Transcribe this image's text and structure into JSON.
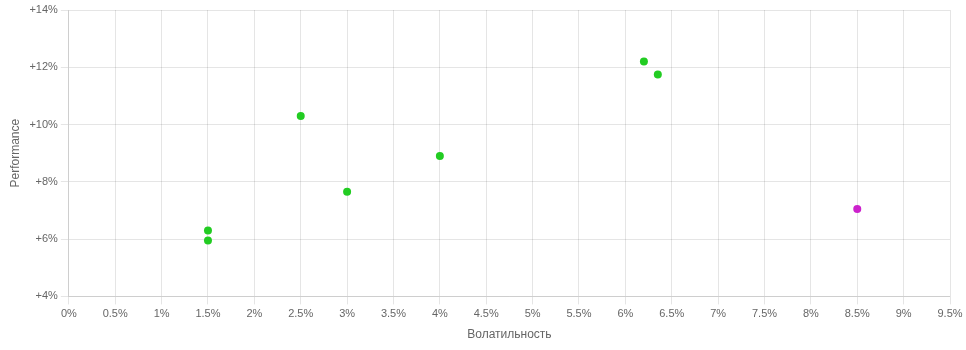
{
  "chart_data": {
    "type": "scatter",
    "xlabel": "Волатильность",
    "ylabel": "Performance",
    "series": [
      {
        "color": "#22cc22",
        "x": [
          1.5,
          1.5,
          2.5,
          3.0,
          4.0,
          6.2,
          6.35
        ],
        "values": [
          6.3,
          5.95,
          10.3,
          7.65,
          8.9,
          12.2,
          11.75
        ]
      },
      {
        "color": "#cc22cc",
        "x": [
          8.5
        ],
        "values": [
          7.05
        ]
      }
    ],
    "xlim": [
      0,
      9.5
    ],
    "ylim": [
      4,
      14
    ],
    "xticks": [
      {
        "value": 0,
        "label": "0%"
      },
      {
        "value": 0.5,
        "label": "0.5%"
      },
      {
        "value": 1.0,
        "label": "1%"
      },
      {
        "value": 1.5,
        "label": "1.5%"
      },
      {
        "value": 2.0,
        "label": "2%"
      },
      {
        "value": 2.5,
        "label": "2.5%"
      },
      {
        "value": 3.0,
        "label": "3%"
      },
      {
        "value": 3.5,
        "label": "3.5%"
      },
      {
        "value": 4.0,
        "label": "4%"
      },
      {
        "value": 4.5,
        "label": "4.5%"
      },
      {
        "value": 5.0,
        "label": "5%"
      },
      {
        "value": 5.5,
        "label": "5.5%"
      },
      {
        "value": 6.0,
        "label": "6%"
      },
      {
        "value": 6.5,
        "label": "6.5%"
      },
      {
        "value": 7.0,
        "label": "7%"
      },
      {
        "value": 7.5,
        "label": "7.5%"
      },
      {
        "value": 8.0,
        "label": "8%"
      },
      {
        "value": 8.5,
        "label": "8.5%"
      },
      {
        "value": 9.0,
        "label": "9%"
      },
      {
        "value": 9.5,
        "label": "9.5%"
      }
    ],
    "yticks": [
      {
        "value": 4,
        "label": "+4%"
      },
      {
        "value": 6,
        "label": "+6%"
      },
      {
        "value": 8,
        "label": "+8%"
      },
      {
        "value": 10,
        "label": "+10%"
      },
      {
        "value": 12,
        "label": "+12%"
      },
      {
        "value": 14,
        "label": "+14%"
      }
    ],
    "grid": true
  }
}
